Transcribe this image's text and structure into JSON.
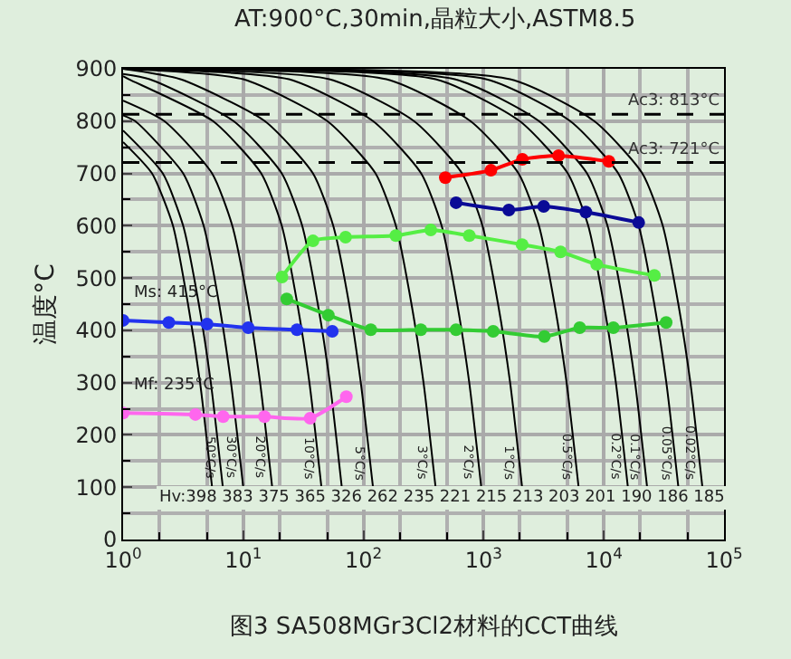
{
  "chart_data": {
    "type": "line",
    "title": "AT:900°C,30min,晶粒大小,ASTM8.5",
    "ylabel": "温度°C",
    "log": "x",
    "grid": true,
    "marker": "circle",
    "line_style": "solid",
    "xlim": [
      1,
      100000
    ],
    "ylim": [
      0,
      900
    ],
    "xticks": [
      {
        "value": 1,
        "label": "10$^{0}$"
      },
      {
        "value": 10,
        "label": "10$^{1}$"
      },
      {
        "value": 100,
        "label": "10$^{2}$"
      },
      {
        "value": 1000,
        "label": "10$^{3}$"
      },
      {
        "value": 10000,
        "label": "10$^{4}$"
      },
      {
        "value": 100000,
        "label": "10$^{5}$"
      }
    ],
    "yticks": [
      0,
      100,
      200,
      300,
      400,
      500,
      600,
      700,
      800,
      900
    ],
    "ref_lines": [
      {
        "axis": "y",
        "value": 813,
        "label": "Ac3: 813°C",
        "color": "#000000",
        "line_style": "dashed"
      },
      {
        "axis": "y",
        "value": 721,
        "label": "Ac3: 721°C",
        "color": "#000000",
        "line_style": "dashed"
      }
    ],
    "series": [
      {
        "color": "#000000",
        "marker": "none",
        "x": [
          1,
          1.74,
          2.6,
          3.47,
          4.37,
          5.5
        ],
        "values": [
          760,
          700,
          600,
          450,
          300,
          100
        ]
      },
      {
        "color": "#000000",
        "marker": "none",
        "x": [
          1,
          2.14,
          3.16,
          4.27,
          5.37,
          6.76
        ],
        "values": [
          782,
          700,
          600,
          450,
          300,
          100
        ]
      },
      {
        "color": "#000000",
        "marker": "none",
        "x": [
          1,
          1.26,
          3.16,
          4.68,
          6.3,
          7.9,
          10
        ],
        "values": [
          811,
          800,
          700,
          600,
          450,
          300,
          100
        ]
      },
      {
        "color": "#000000",
        "marker": "none",
        "x": [
          1,
          2.2,
          5.5,
          8.1,
          11,
          13.8,
          17.4
        ],
        "values": [
          839,
          800,
          700,
          600,
          450,
          300,
          100
        ]
      },
      {
        "color": "#000000",
        "marker": "none",
        "x": [
          1,
          1.12,
          5.6,
          14.1,
          20.9,
          28.2,
          35.5,
          44.7
        ],
        "values": [
          886,
          880,
          800,
          700,
          600,
          450,
          300,
          100
        ]
      },
      {
        "color": "#000000",
        "marker": "none",
        "x": [
          1,
          1.66,
          8.3,
          20.9,
          30.9,
          41.7,
          52.5,
          66
        ],
        "values": [
          890,
          880,
          800,
          700,
          600,
          450,
          300,
          100
        ]
      },
      {
        "color": "#000000",
        "marker": "none",
        "x": [
          1,
          3,
          15.1,
          38,
          56,
          76,
          95,
          120
        ],
        "values": [
          900,
          880,
          800,
          700,
          600,
          450,
          300,
          100
        ]
      },
      {
        "color": "#000000",
        "marker": "none",
        "x": [
          1,
          10,
          50,
          126,
          186,
          251,
          316,
          398
        ],
        "values": [
          900,
          880,
          800,
          700,
          600,
          450,
          300,
          100
        ]
      },
      {
        "color": "#000000",
        "marker": "none",
        "x": [
          1,
          24,
          120,
          302,
          447,
          603,
          759,
          955
        ],
        "values": [
          900,
          880,
          800,
          700,
          600,
          450,
          300,
          100
        ]
      },
      {
        "color": "#000000",
        "marker": "none",
        "x": [
          1,
          52,
          263,
          661,
          977,
          1318,
          1660,
          2089
        ],
        "values": [
          900,
          880,
          800,
          700,
          600,
          450,
          300,
          100
        ]
      },
      {
        "color": "#000000",
        "marker": "none",
        "x": [
          1,
          155,
          776,
          1950,
          2884,
          3890,
          4898,
          6166
        ],
        "values": [
          900,
          880,
          800,
          700,
          600,
          450,
          300,
          100
        ]
      },
      {
        "color": "#000000",
        "marker": "none",
        "x": [
          1,
          398,
          1995,
          5012,
          7413,
          10000,
          12589,
          15849
        ],
        "values": [
          900,
          880,
          800,
          700,
          600,
          450,
          300,
          100
        ]
      },
      {
        "color": "#000000",
        "marker": "none",
        "x": [
          1,
          575,
          2884,
          7244,
          10715,
          14454,
          18197,
          22909
        ],
        "values": [
          900,
          880,
          800,
          700,
          600,
          450,
          300,
          100
        ]
      },
      {
        "color": "#000000",
        "marker": "none",
        "x": [
          1,
          1047,
          5248,
          13183,
          19498,
          26303,
          33113,
          41687
        ],
        "values": [
          900,
          880,
          800,
          700,
          600,
          450,
          300,
          100
        ]
      },
      {
        "color": "#000000",
        "marker": "none",
        "x": [
          1,
          1660,
          8318,
          20893,
          30903,
          41687,
          52481,
          66069
        ],
        "values": [
          900,
          880,
          800,
          700,
          600,
          450,
          300,
          100
        ]
      },
      {
        "color": "#ff0000",
        "x": [
          480,
          1150,
          2100,
          4200,
          11000
        ],
        "values": [
          692,
          706,
          727,
          734,
          723
        ]
      },
      {
        "color": "#0a0a96",
        "x": [
          590,
          1620,
          3160,
          7080,
          19500
        ],
        "values": [
          644,
          630,
          637,
          626,
          606
        ]
      },
      {
        "color": "#55ee44",
        "x": [
          21,
          38,
          71,
          186,
          363,
          759,
          2089,
          4365,
          8710,
          26300
        ],
        "values": [
          502,
          571,
          578,
          581,
          592,
          581,
          564,
          550,
          526,
          505
        ]
      },
      {
        "color": "#33cc33",
        "x": [
          23,
          51,
          115,
          300,
          590,
          1200,
          3200,
          6300,
          12000,
          33000
        ],
        "values": [
          460,
          429,
          401,
          401,
          401,
          398,
          388,
          405,
          405,
          415
        ]
      },
      {
        "color": "#2233ee",
        "x": [
          1,
          2.4,
          5,
          11,
          28,
          55
        ],
        "values": [
          419,
          415,
          412,
          405,
          401,
          398
        ]
      },
      {
        "color": "#ff66ee",
        "x": [
          1,
          4,
          6.8,
          15,
          36,
          72
        ],
        "values": [
          242,
          239,
          235,
          235,
          232,
          273
        ]
      }
    ],
    "annotations": [
      {
        "text": "Ms: 415°C",
        "x": 1,
        "y": 419
      },
      {
        "text": "Mf: 235°C",
        "x": 1,
        "y": 242
      },
      {
        "text": "50°C/s",
        "x": 6.76,
        "y": 100
      },
      {
        "text": "30°C/s",
        "x": 10,
        "y": 100
      },
      {
        "text": "20°C/s",
        "x": 17.4,
        "y": 100
      },
      {
        "text": "10°C/s",
        "x": 44.7,
        "y": 100
      },
      {
        "text": "5°C/s",
        "x": 120,
        "y": 100
      },
      {
        "text": "3°C/s",
        "x": 398,
        "y": 100
      },
      {
        "text": "2°C/s",
        "x": 955,
        "y": 100
      },
      {
        "text": "1°C/s",
        "x": 2089,
        "y": 100
      },
      {
        "text": "0.5°C/s",
        "x": 6166,
        "y": 100
      },
      {
        "text": "0.2°C/s",
        "x": 15849,
        "y": 100
      },
      {
        "text": "0.1°C/s",
        "x": 22909,
        "y": 100
      },
      {
        "text": "0.05°C/s",
        "x": 41687,
        "y": 100
      },
      {
        "text": "0.02°C/s",
        "x": 66069,
        "y": 100
      },
      "Hv:398 383 375 365 326 262 235 221 215 213 203 201 190 186 185",
      "图3 SA508MGr3Cl2材料的CCT曲线"
    ]
  }
}
